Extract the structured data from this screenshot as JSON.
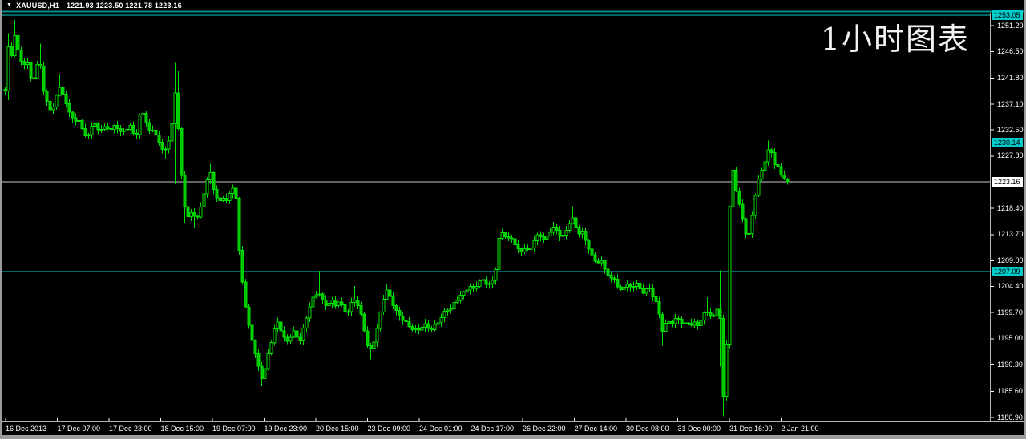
{
  "window": {
    "title_symbol": "XAUUSD,H1",
    "title_ohlc": "1221.93 1223.50 1221.78 1223.16",
    "collapse_arrow": "▼"
  },
  "watermark": "1小时图表",
  "colors": {
    "background": "#000000",
    "frame": "#9c9c9c",
    "title_separator": "#008f8f",
    "candle_stroke": "#00e000",
    "candle_bear_fill": "#00c800",
    "candle_bull_fill": "#000000",
    "level_line": "#00cccc",
    "level_label_bg": "#00cccc",
    "current_line": "#c8c8c8",
    "current_label_bg": "#ffffff",
    "axis_line": "#b4b4b4",
    "axis_text": "#ffffff"
  },
  "chart_data": {
    "type": "candlestick",
    "symbol": "XAUUSD",
    "timeframe": "H1",
    "title": "XAUUSD,H1 1221.93 1223.50 1221.78 1223.16",
    "current_price": 1223.16,
    "levels": [
      1253.05,
      1230.14,
      1207.09
    ],
    "ylim": [
      1180.9,
      1253.05
    ],
    "grid": "off",
    "y_ticks": [
      "1251.20",
      "1246.50",
      "1241.80",
      "1237.10",
      "1232.50",
      "1227.80",
      "1218.40",
      "1213.70",
      "1209.00",
      "1204.40",
      "1199.70",
      "1195.00",
      "1190.30",
      "1185.60",
      "1180.90"
    ],
    "x_ticks": [
      "16 Dec 2013",
      "17 Dec 07:00",
      "17 Dec 23:00",
      "18 Dec 15:00",
      "19 Dec 07:00",
      "19 Dec 23:00",
      "20 Dec 15:00",
      "23 Dec 09:00",
      "24 Dec 01:00",
      "24 Dec 17:00",
      "26 Dec 22:00",
      "27 Dec 14:00",
      "30 Dec 08:00",
      "31 Dec 00:00",
      "31 Dec 16:00",
      "2 Jan 21:00"
    ],
    "close_path": [
      [
        6,
        1239.5
      ],
      [
        9,
        1248
      ],
      [
        13,
        1244.5
      ],
      [
        17,
        1250
      ],
      [
        21,
        1247
      ],
      [
        25,
        1245.5
      ],
      [
        29,
        1244
      ],
      [
        33,
        1245.2
      ],
      [
        37,
        1242.5
      ],
      [
        41,
        1241
      ],
      [
        45,
        1243.5
      ],
      [
        49,
        1245.5
      ],
      [
        53,
        1239.5
      ],
      [
        57,
        1238
      ],
      [
        61,
        1236.5
      ],
      [
        65,
        1236
      ],
      [
        69,
        1238.2
      ],
      [
        73,
        1240.8
      ],
      [
        77,
        1239
      ],
      [
        81,
        1237.5
      ],
      [
        85,
        1236
      ],
      [
        89,
        1234.5
      ],
      [
        93,
        1234
      ],
      [
        97,
        1234.8
      ],
      [
        101,
        1233
      ],
      [
        105,
        1231.8
      ],
      [
        109,
        1231.4
      ],
      [
        113,
        1232.5
      ],
      [
        117,
        1234
      ],
      [
        121,
        1232.5
      ],
      [
        125,
        1232
      ],
      [
        129,
        1233.5
      ],
      [
        133,
        1233
      ],
      [
        137,
        1232.2
      ],
      [
        141,
        1233.8
      ],
      [
        145,
        1232.8
      ],
      [
        149,
        1231.8
      ],
      [
        153,
        1232.5
      ],
      [
        157,
        1232
      ],
      [
        161,
        1233.5
      ],
      [
        165,
        1232.8
      ],
      [
        169,
        1230.5
      ],
      [
        173,
        1235
      ],
      [
        177,
        1236.2
      ],
      [
        181,
        1234
      ],
      [
        185,
        1232
      ],
      [
        189,
        1232.8
      ],
      [
        193,
        1231.5
      ],
      [
        197,
        1230.8
      ],
      [
        201,
        1229.5
      ],
      [
        205,
        1228.5
      ],
      [
        209,
        1230.5
      ],
      [
        213,
        1231.5
      ],
      [
        217,
        1240
      ],
      [
        221,
        1235
      ],
      [
        225,
        1226
      ],
      [
        229,
        1219
      ],
      [
        233,
        1217
      ],
      [
        237,
        1218
      ],
      [
        241,
        1217
      ],
      [
        245,
        1216.8
      ],
      [
        249,
        1218
      ],
      [
        253,
        1220
      ],
      [
        257,
        1223
      ],
      [
        261,
        1225.5
      ],
      [
        265,
        1222
      ],
      [
        269,
        1221
      ],
      [
        273,
        1219.5
      ],
      [
        277,
        1220.5
      ],
      [
        281,
        1219.8
      ],
      [
        285,
        1220.5
      ],
      [
        289,
        1221.5
      ],
      [
        293,
        1223
      ],
      [
        297,
        1212
      ],
      [
        301,
        1206.5
      ],
      [
        305,
        1202
      ],
      [
        309,
        1198
      ],
      [
        313,
        1195.5
      ],
      [
        317,
        1193
      ],
      [
        321,
        1190.5
      ],
      [
        325,
        1187.5
      ],
      [
        329,
        1189
      ],
      [
        333,
        1191.5
      ],
      [
        337,
        1194
      ],
      [
        341,
        1196.5
      ],
      [
        345,
        1198.3
      ],
      [
        349,
        1197
      ],
      [
        353,
        1195.5
      ],
      [
        357,
        1194
      ],
      [
        361,
        1195
      ],
      [
        365,
        1196.5
      ],
      [
        369,
        1195.5
      ],
      [
        373,
        1194.5
      ],
      [
        377,
        1196.5
      ],
      [
        381,
        1198.2
      ],
      [
        385,
        1200.5
      ],
      [
        389,
        1202
      ],
      [
        393,
        1202.5
      ],
      [
        397,
        1203.5
      ],
      [
        401,
        1202
      ],
      [
        405,
        1201
      ],
      [
        409,
        1201.5
      ],
      [
        413,
        1202.2
      ],
      [
        417,
        1200.8
      ],
      [
        421,
        1201.8
      ],
      [
        425,
        1201
      ],
      [
        429,
        1200
      ],
      [
        433,
        1199.5
      ],
      [
        437,
        1201
      ],
      [
        441,
        1202.5
      ],
      [
        445,
        1201.5
      ],
      [
        449,
        1200
      ],
      [
        453,
        1197.5
      ],
      [
        457,
        1194
      ],
      [
        461,
        1192.5
      ],
      [
        465,
        1194
      ],
      [
        469,
        1196
      ],
      [
        473,
        1199
      ],
      [
        477,
        1202
      ],
      [
        481,
        1204
      ],
      [
        485,
        1203
      ],
      [
        489,
        1201.5
      ],
      [
        493,
        1200
      ],
      [
        497,
        1199
      ],
      [
        501,
        1198.5
      ],
      [
        505,
        1198
      ],
      [
        509,
        1197.5
      ],
      [
        513,
        1197
      ],
      [
        517,
        1196.8
      ],
      [
        521,
        1196.5
      ],
      [
        525,
        1197
      ],
      [
        529,
        1197.5
      ],
      [
        533,
        1197
      ],
      [
        537,
        1196.5
      ],
      [
        541,
        1197.2
      ],
      [
        545,
        1198
      ],
      [
        549,
        1198.8
      ],
      [
        553,
        1199.6
      ],
      [
        557,
        1200.4
      ],
      [
        561,
        1200
      ],
      [
        565,
        1201
      ],
      [
        569,
        1201.8
      ],
      [
        573,
        1202.6
      ],
      [
        577,
        1203.2
      ],
      [
        581,
        1204
      ],
      [
        585,
        1204.6
      ],
      [
        589,
        1203.8
      ],
      [
        593,
        1204.4
      ],
      [
        597,
        1205
      ],
      [
        601,
        1205.6
      ],
      [
        605,
        1205
      ],
      [
        609,
        1204.6
      ],
      [
        613,
        1205.4
      ],
      [
        617,
        1206.2
      ],
      [
        621,
        1212.5
      ],
      [
        625,
        1214.2
      ],
      [
        629,
        1213.6
      ],
      [
        633,
        1212.6
      ],
      [
        637,
        1213.2
      ],
      [
        641,
        1212.2
      ],
      [
        645,
        1211.2
      ],
      [
        649,
        1210.6
      ],
      [
        653,
        1211.6
      ],
      [
        657,
        1210.8
      ],
      [
        661,
        1211.2
      ],
      [
        665,
        1212.2
      ],
      [
        669,
        1213.2
      ],
      [
        673,
        1213.6
      ],
      [
        677,
        1212.8
      ],
      [
        681,
        1213.2
      ],
      [
        685,
        1214.2
      ],
      [
        689,
        1215.2
      ],
      [
        693,
        1214.6
      ],
      [
        697,
        1213.6
      ],
      [
        701,
        1213.2
      ],
      [
        705,
        1213.8
      ],
      [
        709,
        1215.5
      ],
      [
        713,
        1217
      ],
      [
        717,
        1215.5
      ],
      [
        721,
        1214
      ],
      [
        725,
        1214.6
      ],
      [
        729,
        1213
      ],
      [
        733,
        1211.5
      ],
      [
        737,
        1210
      ],
      [
        741,
        1209
      ],
      [
        745,
        1208.6
      ],
      [
        749,
        1209.2
      ],
      [
        753,
        1208
      ],
      [
        757,
        1207
      ],
      [
        761,
        1205.6
      ],
      [
        765,
        1206.2
      ],
      [
        769,
        1204.6
      ],
      [
        773,
        1203.2
      ],
      [
        777,
        1204.2
      ],
      [
        781,
        1205
      ],
      [
        785,
        1204.2
      ],
      [
        789,
        1204.6
      ],
      [
        793,
        1205.4
      ],
      [
        797,
        1204
      ],
      [
        801,
        1203.2
      ],
      [
        805,
        1203.6
      ],
      [
        809,
        1204.2
      ],
      [
        813,
        1203
      ],
      [
        817,
        1202
      ],
      [
        821,
        1200.5
      ],
      [
        825,
        1196.5
      ],
      [
        829,
        1197.5
      ],
      [
        833,
        1198.2
      ],
      [
        837,
        1197.6
      ],
      [
        841,
        1198.2
      ],
      [
        845,
        1198.6
      ],
      [
        849,
        1198
      ],
      [
        853,
        1197.6
      ],
      [
        857,
        1198.2
      ],
      [
        861,
        1197.6
      ],
      [
        865,
        1198
      ],
      [
        869,
        1197.2
      ],
      [
        873,
        1198
      ],
      [
        877,
        1199
      ],
      [
        881,
        1200.2
      ],
      [
        885,
        1199.2
      ],
      [
        889,
        1198.8
      ],
      [
        893,
        1200
      ],
      [
        897,
        1202.5
      ],
      [
        899,
        1195
      ],
      [
        901,
        1186
      ],
      [
        903,
        1183
      ],
      [
        905,
        1188
      ],
      [
        907,
        1200
      ],
      [
        909,
        1213
      ],
      [
        911,
        1224
      ],
      [
        913,
        1226
      ],
      [
        915,
        1224
      ],
      [
        917,
        1222.5
      ],
      [
        919,
        1221
      ],
      [
        921,
        1219.8
      ],
      [
        923,
        1218.5
      ],
      [
        925,
        1217.2
      ],
      [
        927,
        1216
      ],
      [
        929,
        1214.8
      ],
      [
        931,
        1213.6
      ],
      [
        933,
        1213
      ],
      [
        935,
        1214.5
      ],
      [
        937,
        1216
      ],
      [
        939,
        1218
      ],
      [
        941,
        1220
      ],
      [
        943,
        1221.5
      ],
      [
        945,
        1222.8
      ],
      [
        947,
        1223.8
      ],
      [
        949,
        1224.8
      ],
      [
        951,
        1225.6
      ],
      [
        953,
        1226.6
      ],
      [
        955,
        1227.4
      ],
      [
        957,
        1228.4
      ],
      [
        959,
        1229.3
      ],
      [
        961,
        1228.2
      ],
      [
        963,
        1229
      ],
      [
        965,
        1227.2
      ],
      [
        967,
        1225.8
      ],
      [
        969,
        1226.2
      ],
      [
        971,
        1225.2
      ],
      [
        973,
        1224.6
      ],
      [
        975,
        1224.2
      ],
      [
        977,
        1223.8
      ],
      [
        979,
        1223.4
      ],
      [
        982,
        1223.16
      ]
    ],
    "extremes": [
      [
        9,
        1249.8,
        1237.8
      ],
      [
        17,
        1252.2,
        null
      ],
      [
        49,
        1248,
        null
      ],
      [
        73,
        1242.5,
        null
      ],
      [
        117,
        1235.2,
        null
      ],
      [
        177,
        1237.6,
        null
      ],
      [
        205,
        null,
        1227.2
      ],
      [
        217,
        1244.5,
        1222.7
      ],
      [
        221,
        1243,
        null
      ],
      [
        229,
        null,
        1215.8
      ],
      [
        241,
        null,
        1214.9
      ],
      [
        261,
        1226.4,
        null
      ],
      [
        293,
        1224.4,
        null
      ],
      [
        297,
        null,
        1211.2
      ],
      [
        309,
        null,
        1196.8
      ],
      [
        325,
        null,
        1186.5
      ],
      [
        397,
        1207.2,
        null
      ],
      [
        441,
        1204.5,
        null
      ],
      [
        461,
        null,
        1191.3
      ],
      [
        481,
        1204.8,
        null
      ],
      [
        617,
        1207.6,
        null
      ],
      [
        689,
        1216,
        null
      ],
      [
        713,
        1218.8,
        null
      ],
      [
        825,
        null,
        1193.8
      ],
      [
        881,
        1202.5,
        null
      ],
      [
        897,
        1207.3,
        null
      ],
      [
        899,
        null,
        1190
      ],
      [
        903,
        null,
        1181.1
      ],
      [
        959,
        1230.6,
        null
      ]
    ]
  }
}
